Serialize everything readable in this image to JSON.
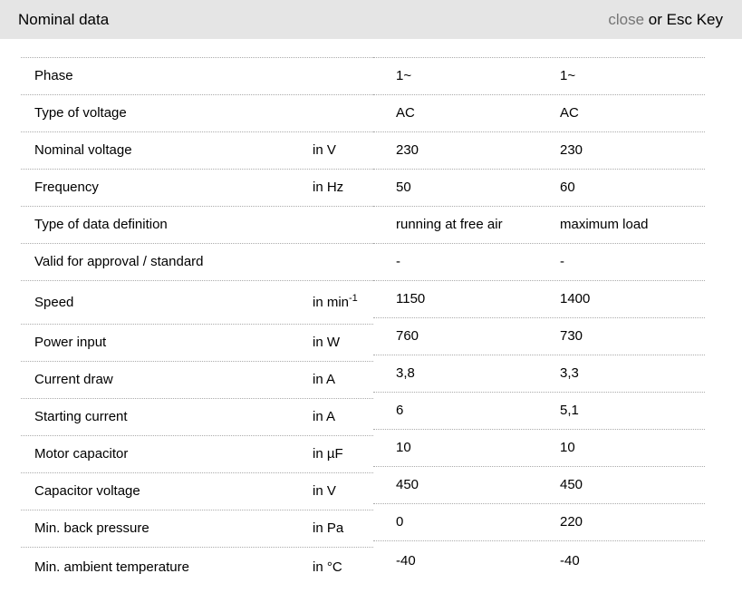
{
  "header": {
    "title": "Nominal data",
    "close_label": "close",
    "close_suffix": " or Esc Key"
  },
  "colors": {
    "header_bg": "#e5e5e5",
    "close_link": "#757575",
    "row_border": "#ababab",
    "text": "#000000",
    "page_bg": "#ffffff"
  },
  "table": {
    "rows": [
      {
        "label": "Phase",
        "unit": "",
        "values": [
          "1~",
          "1~"
        ]
      },
      {
        "label": "Type of voltage",
        "unit": "",
        "values": [
          "AC",
          "AC"
        ]
      },
      {
        "label": "Nominal voltage",
        "unit": "in V",
        "values": [
          "230",
          "230"
        ]
      },
      {
        "label": "Frequency",
        "unit": "in Hz",
        "values": [
          "50",
          "60"
        ]
      },
      {
        "label": "Type of data definition",
        "unit": "",
        "values": [
          "running at free air",
          "maximum load"
        ]
      },
      {
        "label": "Valid for approval / standard",
        "unit": "",
        "values": [
          "-",
          "-"
        ]
      },
      {
        "label": "Speed",
        "unit": "in min",
        "unit_sup": "-1",
        "values": [
          "1150",
          "1400"
        ]
      },
      {
        "label": "Power input",
        "unit": "in W",
        "values": [
          "760",
          "730"
        ]
      },
      {
        "label": "Current draw",
        "unit": "in A",
        "values": [
          "3,8",
          "3,3"
        ]
      },
      {
        "label": "Starting current",
        "unit": "in A",
        "values": [
          "6",
          "5,1"
        ]
      },
      {
        "label": "Motor capacitor",
        "unit": "in µF",
        "values": [
          "10",
          "10"
        ]
      },
      {
        "label": "Capacitor voltage",
        "unit": "in V",
        "values": [
          "450",
          "450"
        ]
      },
      {
        "label": "Min. back pressure",
        "unit": "in Pa",
        "values": [
          "0",
          "220"
        ]
      },
      {
        "label": "Min. ambient temperature",
        "unit": "in °C",
        "values": [
          "-40",
          "-40"
        ]
      }
    ]
  }
}
